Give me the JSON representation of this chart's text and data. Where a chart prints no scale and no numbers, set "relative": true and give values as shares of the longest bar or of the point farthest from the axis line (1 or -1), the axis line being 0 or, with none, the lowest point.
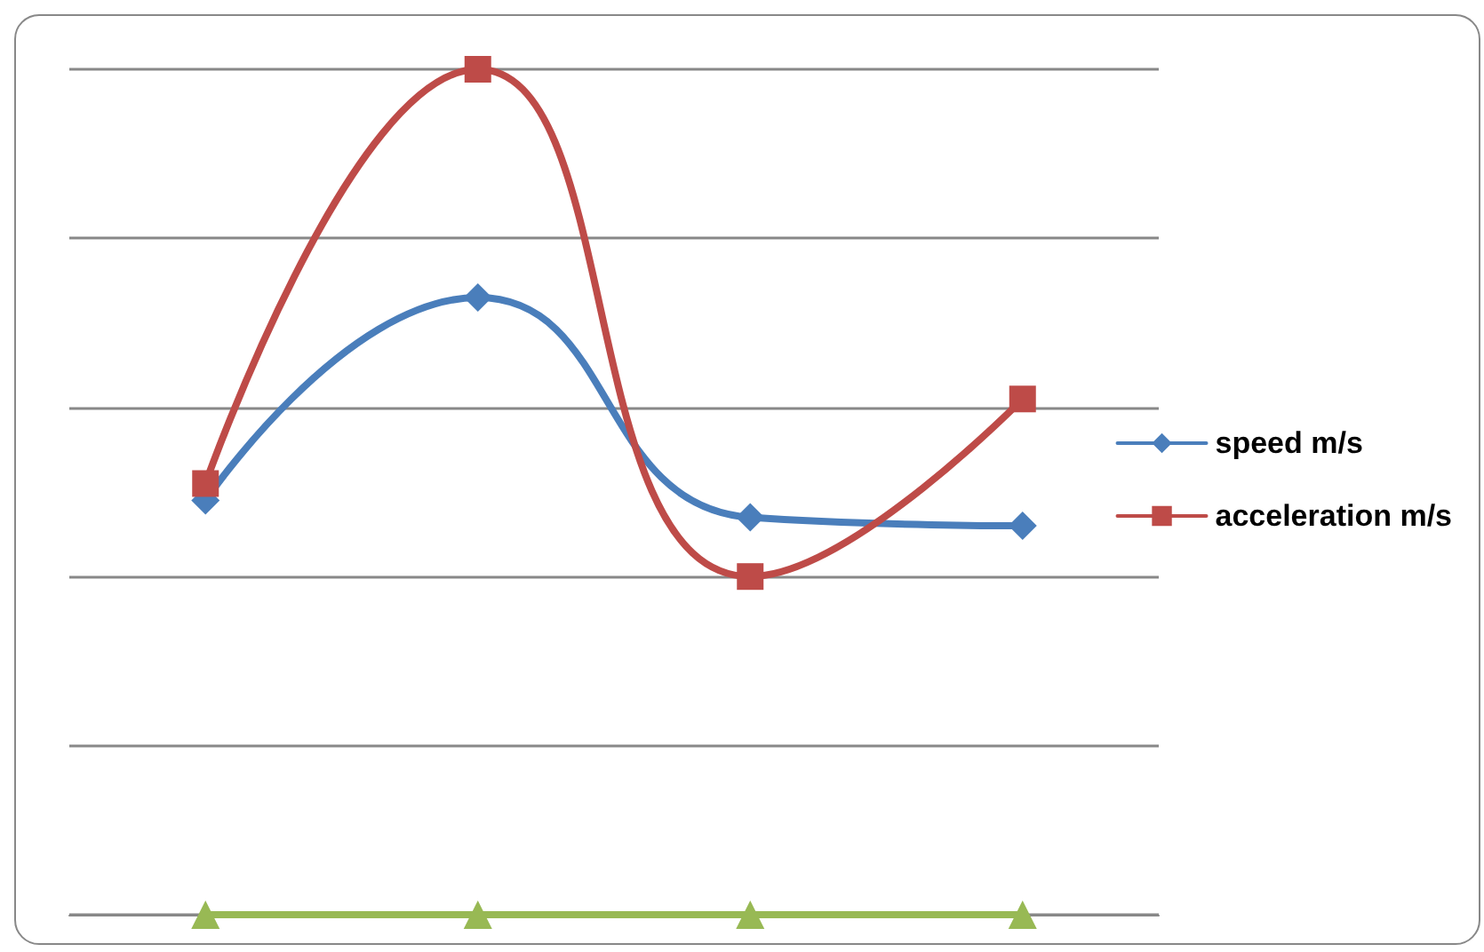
{
  "chart_data": {
    "type": "line",
    "relative": true,
    "categories": [
      null,
      null,
      null,
      null
    ],
    "series": [
      {
        "name": "speed m/s",
        "color": "#4a7ebb",
        "marker": "diamond",
        "values": [
          0.49,
          0.73,
          0.47,
          0.46
        ]
      },
      {
        "name": "acceleration m/s",
        "color": "#be4b48",
        "marker": "square",
        "values": [
          0.51,
          1,
          0.4,
          0.61
        ]
      },
      {
        "color": "#98b954",
        "marker": "triangle",
        "values": [
          0,
          0,
          0,
          0
        ]
      }
    ],
    "grid": "y",
    "legend": "right",
    "line_style": "solid"
  }
}
